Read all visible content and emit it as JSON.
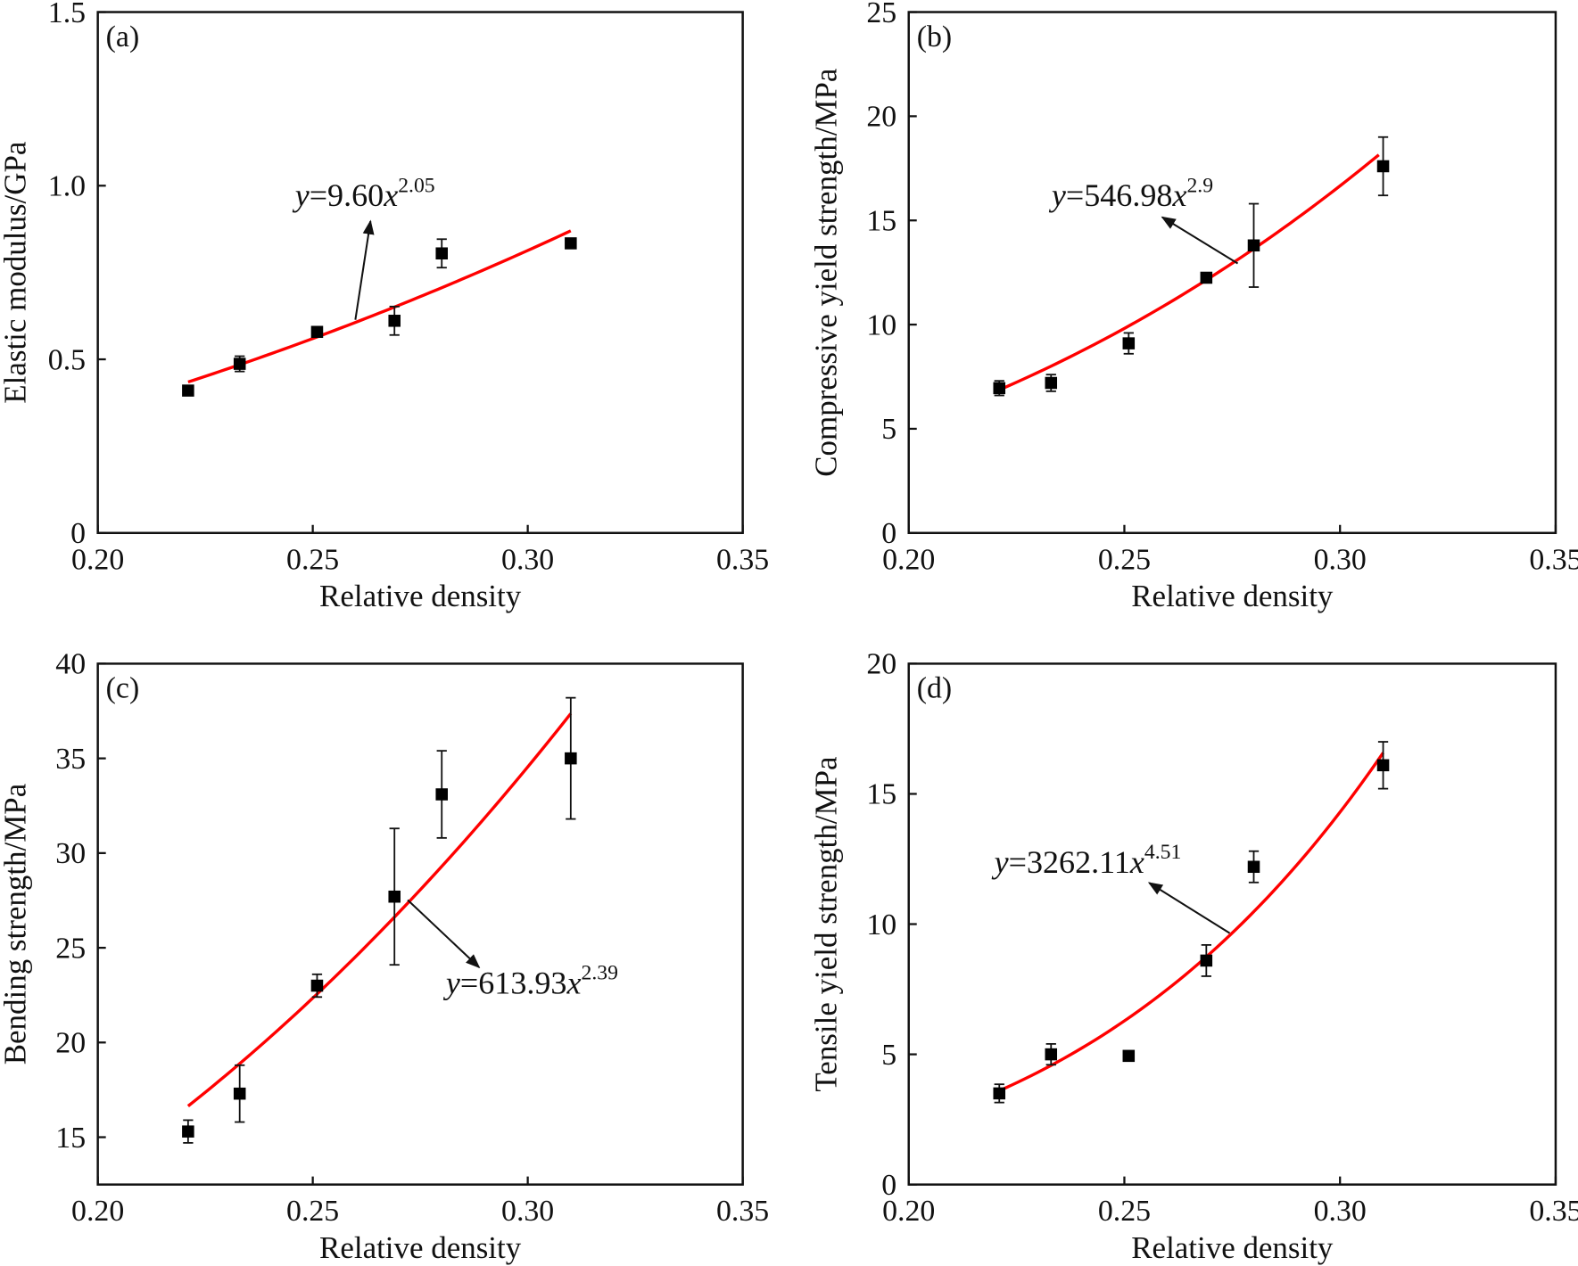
{
  "chart_data": [
    {
      "type": "scatter",
      "panel_label": "(a)",
      "xlabel": "Relative density",
      "ylabel": "Elastic modulus/GPa",
      "xlim": [
        0.2,
        0.35
      ],
      "ylim": [
        0,
        1.5
      ],
      "xticks": [
        "0.20",
        "0.25",
        "0.30",
        "0.35"
      ],
      "yticks": [
        "0",
        "0.5",
        "1.0",
        "1.5"
      ],
      "ytick_values": [
        0,
        0.5,
        1.0,
        1.5
      ],
      "points": {
        "x": [
          0.221,
          0.233,
          0.251,
          0.269,
          0.28,
          0.31
        ],
        "y": [
          0.41,
          0.487,
          0.579,
          0.611,
          0.805,
          0.834
        ],
        "err": [
          0.008,
          0.022,
          0.008,
          0.041,
          0.041,
          0.008
        ]
      },
      "fit": {
        "a": 9.6,
        "b": 2.05,
        "x_range": [
          0.221,
          0.31
        ],
        "var": "y",
        "eq_coef": "=9.60",
        "eq_x": "x",
        "eq_exp": "2.05"
      },
      "grid": false,
      "colors": {
        "fit": "#ff0000",
        "marker": "#000000"
      }
    },
    {
      "type": "scatter",
      "panel_label": "(b)",
      "xlabel": "Relative density",
      "ylabel": "Compressive yield strength/MPa",
      "xlim": [
        0.2,
        0.35
      ],
      "ylim": [
        0,
        25
      ],
      "xticks": [
        "0.20",
        "0.25",
        "0.30",
        "0.35"
      ],
      "yticks": [
        "0",
        "5",
        "10",
        "15",
        "20",
        "25"
      ],
      "ytick_values": [
        0,
        5,
        10,
        15,
        20,
        25
      ],
      "points": {
        "x": [
          0.221,
          0.233,
          0.251,
          0.269,
          0.28,
          0.31
        ],
        "y": [
          6.95,
          7.2,
          9.1,
          12.25,
          13.8,
          17.6
        ],
        "err": [
          0.35,
          0.4,
          0.5,
          0.1,
          2.0,
          1.4
        ]
      },
      "fit": {
        "a": 546.98,
        "b": 2.9,
        "x_range": [
          0.221,
          0.309
        ],
        "var": "y",
        "eq_coef": "=546.98",
        "eq_x": "x",
        "eq_exp": "2.9"
      },
      "grid": false,
      "colors": {
        "fit": "#ff0000",
        "marker": "#000000"
      }
    },
    {
      "type": "scatter",
      "panel_label": "(c)",
      "xlabel": "Relative density",
      "ylabel": "Bending strength/MPa",
      "xlim": [
        0.2,
        0.35
      ],
      "ylim": [
        12.5,
        40
      ],
      "xticks": [
        "0.20",
        "0.25",
        "0.30",
        "0.35"
      ],
      "yticks": [
        "15",
        "20",
        "25",
        "30",
        "35",
        "40"
      ],
      "ytick_values": [
        15,
        20,
        25,
        30,
        35,
        40
      ],
      "points": {
        "x": [
          0.221,
          0.233,
          0.251,
          0.269,
          0.28,
          0.31
        ],
        "y": [
          15.3,
          17.3,
          23.0,
          27.7,
          33.1,
          35.0
        ],
        "err": [
          0.6,
          1.5,
          0.6,
          3.6,
          2.3,
          3.2
        ]
      },
      "fit": {
        "a": 613.93,
        "b": 2.39,
        "x_range": [
          0.221,
          0.31
        ],
        "var": "y",
        "eq_coef": "=613.93",
        "eq_x": "x",
        "eq_exp": "2.39"
      },
      "grid": false,
      "colors": {
        "fit": "#ff0000",
        "marker": "#000000"
      }
    },
    {
      "type": "scatter",
      "panel_label": "(d)",
      "xlabel": "Relative density",
      "ylabel": "Tensile yield strength/MPa",
      "xlim": [
        0.2,
        0.35
      ],
      "ylim": [
        0,
        20
      ],
      "xticks": [
        "0.20",
        "0.25",
        "0.30",
        "0.35"
      ],
      "yticks": [
        "0",
        "5",
        "10",
        "15",
        "20"
      ],
      "ytick_values": [
        0,
        5,
        10,
        15,
        20
      ],
      "points": {
        "x": [
          0.221,
          0.233,
          0.251,
          0.269,
          0.28,
          0.31
        ],
        "y": [
          3.5,
          5.0,
          4.94,
          8.6,
          12.2,
          16.1
        ],
        "err": [
          0.35,
          0.4,
          0.05,
          0.6,
          0.6,
          0.9
        ]
      },
      "fit": {
        "a": 3262.11,
        "b": 4.51,
        "x_range": [
          0.221,
          0.31
        ],
        "var": "y",
        "eq_coef": "=3262.11",
        "eq_x": "x",
        "eq_exp": "4.51"
      },
      "grid": false,
      "colors": {
        "fit": "#ff0000",
        "marker": "#000000"
      }
    }
  ]
}
